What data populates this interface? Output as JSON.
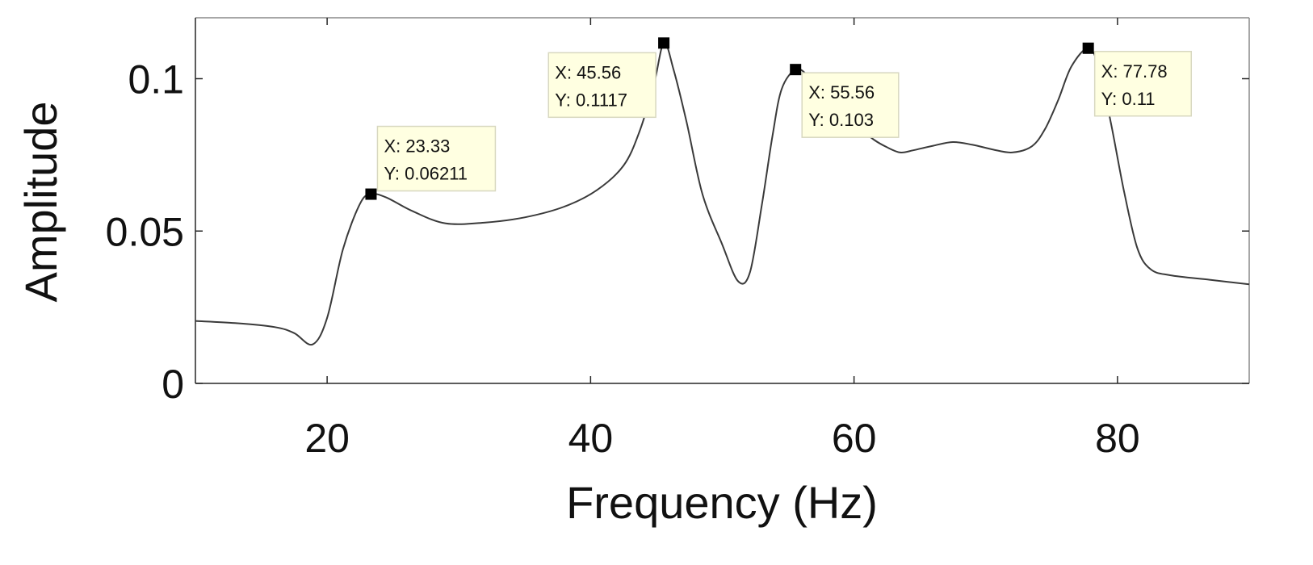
{
  "chart_data": {
    "type": "line",
    "title": "",
    "xlabel": "Frequency (Hz)",
    "ylabel": "Amplitude",
    "xlim": [
      10,
      90
    ],
    "ylim": [
      0,
      0.12
    ],
    "xticks": [
      20,
      40,
      60,
      80
    ],
    "xtick_labels": [
      "20",
      "40",
      "60",
      "80"
    ],
    "yticks": [
      0,
      0.05,
      0.1
    ],
    "ytick_labels": [
      "0",
      "0.05",
      "0.1"
    ],
    "grid": false,
    "series": [
      {
        "x": [
          10,
          13,
          16,
          17.5,
          18.9,
          20,
          21.2,
          22.5,
          23.33,
          24.5,
          26.5,
          29,
          32,
          35,
          38,
          40.5,
          42.5,
          43.7,
          44.8,
          45.56,
          46.3,
          47.3,
          48.5,
          50,
          51.2,
          52.1,
          53,
          53.8,
          54.5,
          55.56,
          56.5,
          57.5,
          58.5,
          59.5,
          60.5,
          61.5,
          62.5,
          63.5,
          64.5,
          66,
          67.5,
          69,
          70.5,
          72,
          73.5,
          74.5,
          75.5,
          76.5,
          77.78,
          78.6,
          79.5,
          80.5,
          81.5,
          82.5,
          84,
          87,
          90
        ],
        "y": [
          0.0205,
          0.0198,
          0.0185,
          0.0165,
          0.0128,
          0.0215,
          0.044,
          0.059,
          0.06211,
          0.061,
          0.0565,
          0.0525,
          0.0528,
          0.0545,
          0.058,
          0.0635,
          0.0715,
          0.0825,
          0.098,
          0.1117,
          0.103,
          0.0855,
          0.062,
          0.0455,
          0.0335,
          0.0365,
          0.0585,
          0.081,
          0.0965,
          0.103,
          0.101,
          0.0955,
          0.0905,
          0.087,
          0.0835,
          0.08,
          0.0775,
          0.0758,
          0.0765,
          0.078,
          0.0792,
          0.0783,
          0.0768,
          0.0758,
          0.0778,
          0.0835,
          0.093,
          0.104,
          0.11,
          0.1035,
          0.0855,
          0.063,
          0.0445,
          0.0375,
          0.0355,
          0.034,
          0.0325
        ]
      }
    ],
    "datatips": [
      {
        "x": 23.33,
        "y": 0.06211,
        "line1": "X: 23.33",
        "line2": "Y: 0.06211",
        "placement": "above-right"
      },
      {
        "x": 45.56,
        "y": 0.1117,
        "line1": "X: 45.56",
        "line2": "Y: 0.1117",
        "placement": "left"
      },
      {
        "x": 55.56,
        "y": 0.103,
        "line1": "X: 55.56",
        "line2": "Y: 0.103",
        "placement": "right"
      },
      {
        "x": 77.78,
        "y": 0.11,
        "line1": "X: 77.78",
        "line2": "Y: 0.11",
        "placement": "right"
      }
    ]
  }
}
